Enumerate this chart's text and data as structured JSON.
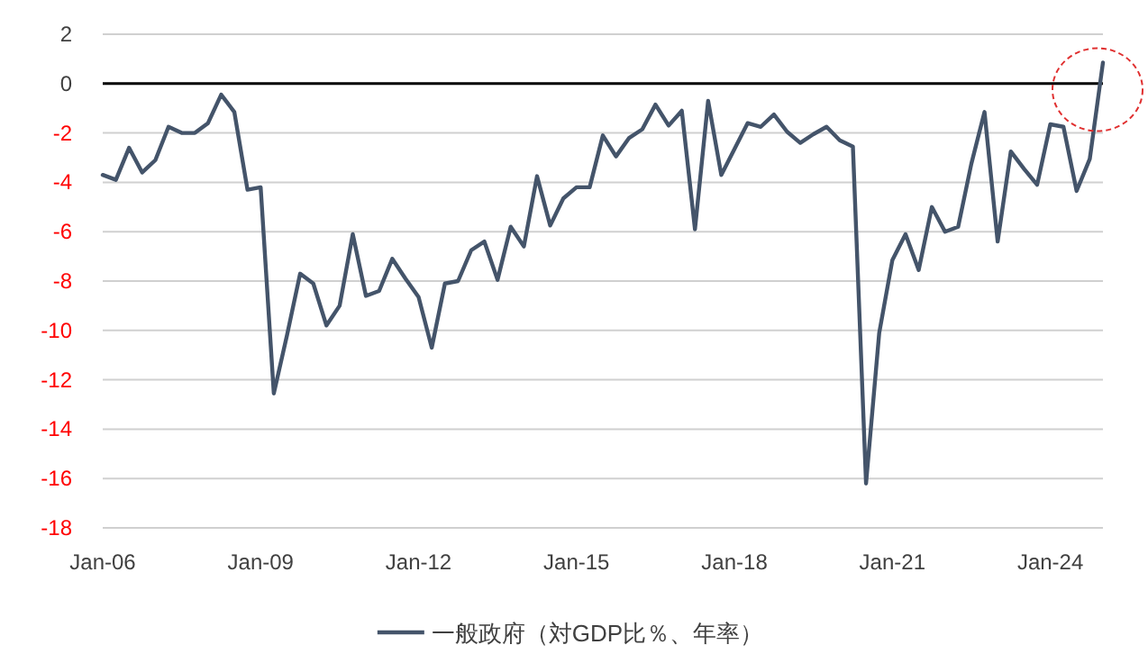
{
  "chart_data": {
    "type": "line",
    "x": [
      "2006-01",
      "2006-04",
      "2006-07",
      "2006-10",
      "2007-01",
      "2007-04",
      "2007-07",
      "2007-10",
      "2008-01",
      "2008-04",
      "2008-07",
      "2008-10",
      "2009-01",
      "2009-04",
      "2009-07",
      "2009-10",
      "2010-01",
      "2010-04",
      "2010-07",
      "2010-10",
      "2011-01",
      "2011-04",
      "2011-07",
      "2011-10",
      "2012-01",
      "2012-04",
      "2012-07",
      "2012-10",
      "2013-01",
      "2013-04",
      "2013-07",
      "2013-10",
      "2014-01",
      "2014-04",
      "2014-07",
      "2014-10",
      "2015-01",
      "2015-04",
      "2015-07",
      "2015-10",
      "2016-01",
      "2016-04",
      "2016-07",
      "2016-10",
      "2017-01",
      "2017-04",
      "2017-07",
      "2017-10",
      "2018-01",
      "2018-04",
      "2018-07",
      "2018-10",
      "2019-01",
      "2019-04",
      "2019-07",
      "2019-10",
      "2020-01",
      "2020-04",
      "2020-07",
      "2020-10",
      "2021-01",
      "2021-04",
      "2021-07",
      "2021-10",
      "2022-01",
      "2022-04",
      "2022-07",
      "2022-10",
      "2023-01",
      "2023-04",
      "2023-07",
      "2023-10",
      "2024-01",
      "2024-04",
      "2024-07",
      "2024-10",
      "2025-01"
    ],
    "series": [
      {
        "name": "一般政府（対GDP比％、年率）",
        "color": "#44546a",
        "values": [
          -3.7,
          -3.9,
          -2.6,
          -3.6,
          -3.1,
          -1.75,
          -2.0,
          -2.0,
          -1.6,
          -0.45,
          -1.15,
          -4.3,
          -4.2,
          -12.55,
          -10.2,
          -7.7,
          -8.1,
          -9.8,
          -9.0,
          -6.1,
          -8.6,
          -8.4,
          -7.1,
          -7.9,
          -8.65,
          -10.7,
          -8.1,
          -8.0,
          -6.75,
          -6.4,
          -7.95,
          -5.8,
          -6.6,
          -3.75,
          -5.75,
          -4.65,
          -4.2,
          -4.2,
          -2.1,
          -2.95,
          -2.2,
          -1.85,
          -0.85,
          -1.7,
          -1.1,
          -5.9,
          -0.7,
          -3.7,
          -2.65,
          -1.6,
          -1.75,
          -1.25,
          -1.95,
          -2.4,
          -2.05,
          -1.75,
          -2.3,
          -2.55,
          -16.2,
          -10.1,
          -7.15,
          -6.1,
          -7.55,
          -5.0,
          -6.0,
          -5.8,
          -3.25,
          -1.15,
          -6.4,
          -2.75,
          -3.45,
          -4.1,
          -1.65,
          -1.75,
          -4.35,
          -3.05,
          0.85
        ]
      }
    ],
    "xlim": [
      "2006-01",
      "2025-01"
    ],
    "xticks": [
      {
        "value": "2006-01",
        "label": "Jan-06"
      },
      {
        "value": "2009-01",
        "label": "Jan-09"
      },
      {
        "value": "2012-01",
        "label": "Jan-12"
      },
      {
        "value": "2015-01",
        "label": "Jan-15"
      },
      {
        "value": "2018-01",
        "label": "Jan-18"
      },
      {
        "value": "2021-01",
        "label": "Jan-21"
      },
      {
        "value": "2024-01",
        "label": "Jan-24"
      }
    ],
    "ylim": [
      -18,
      2
    ],
    "yticks": [
      -18,
      -16,
      -14,
      -12,
      -10,
      -8,
      -6,
      -4,
      -2,
      0,
      2
    ],
    "grid": "y",
    "ref_lines": [
      {
        "axis": "y",
        "value": 0,
        "color": "#000000"
      }
    ],
    "legend": "bottom",
    "marker": "none",
    "line_style": "solid"
  }
}
